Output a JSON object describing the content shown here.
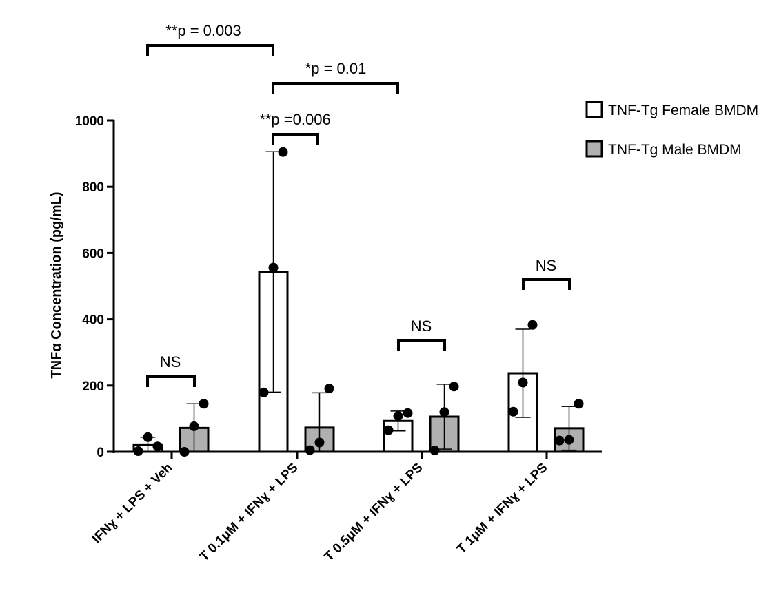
{
  "chart_data": {
    "type": "bar",
    "ylabel": "TNFα Concentration (pg/mL)",
    "xlabel": "",
    "ylim": [
      0,
      1000
    ],
    "yticks": [
      0,
      200,
      400,
      600,
      800,
      1000
    ],
    "ytick_labels": [
      "0",
      "200",
      "400",
      "600",
      "800",
      "1000"
    ],
    "categories": [
      "IFNɣ + LPS + Veh",
      "T 0.1μM + IFNɣ + LPS",
      "T 0.5μM + IFNɣ + LPS",
      "T 1μM + IFNɣ + LPS"
    ],
    "series": [
      {
        "name": "TNF-Tg Female BMDM",
        "color": "#ffffff",
        "values": [
          20,
          543,
          93,
          237
        ],
        "errors": [
          24,
          363,
          30,
          133
        ],
        "points": [
          [
            2,
            44,
            16
          ],
          [
            179,
            556,
            905
          ],
          [
            65,
            108,
            117
          ],
          [
            121,
            209,
            383
          ]
        ]
      },
      {
        "name": "TNF-Tg Male BMDM",
        "color": "#b0b0b0",
        "values": [
          72,
          73,
          106,
          71
        ],
        "errors": [
          73,
          105,
          98,
          66
        ],
        "points": [
          [
            0,
            77,
            145
          ],
          [
            5,
            28,
            191
          ],
          [
            4,
            120,
            197
          ],
          [
            34,
            36,
            145
          ]
        ]
      }
    ],
    "legend_position": "top-right",
    "annotations": [
      {
        "text": "**p = 0.003"
      },
      {
        "text": "*p = 0.01"
      },
      {
        "text": "**p =0.006"
      },
      {
        "text": "NS"
      },
      {
        "text": "NS"
      },
      {
        "text": "NS"
      }
    ]
  }
}
